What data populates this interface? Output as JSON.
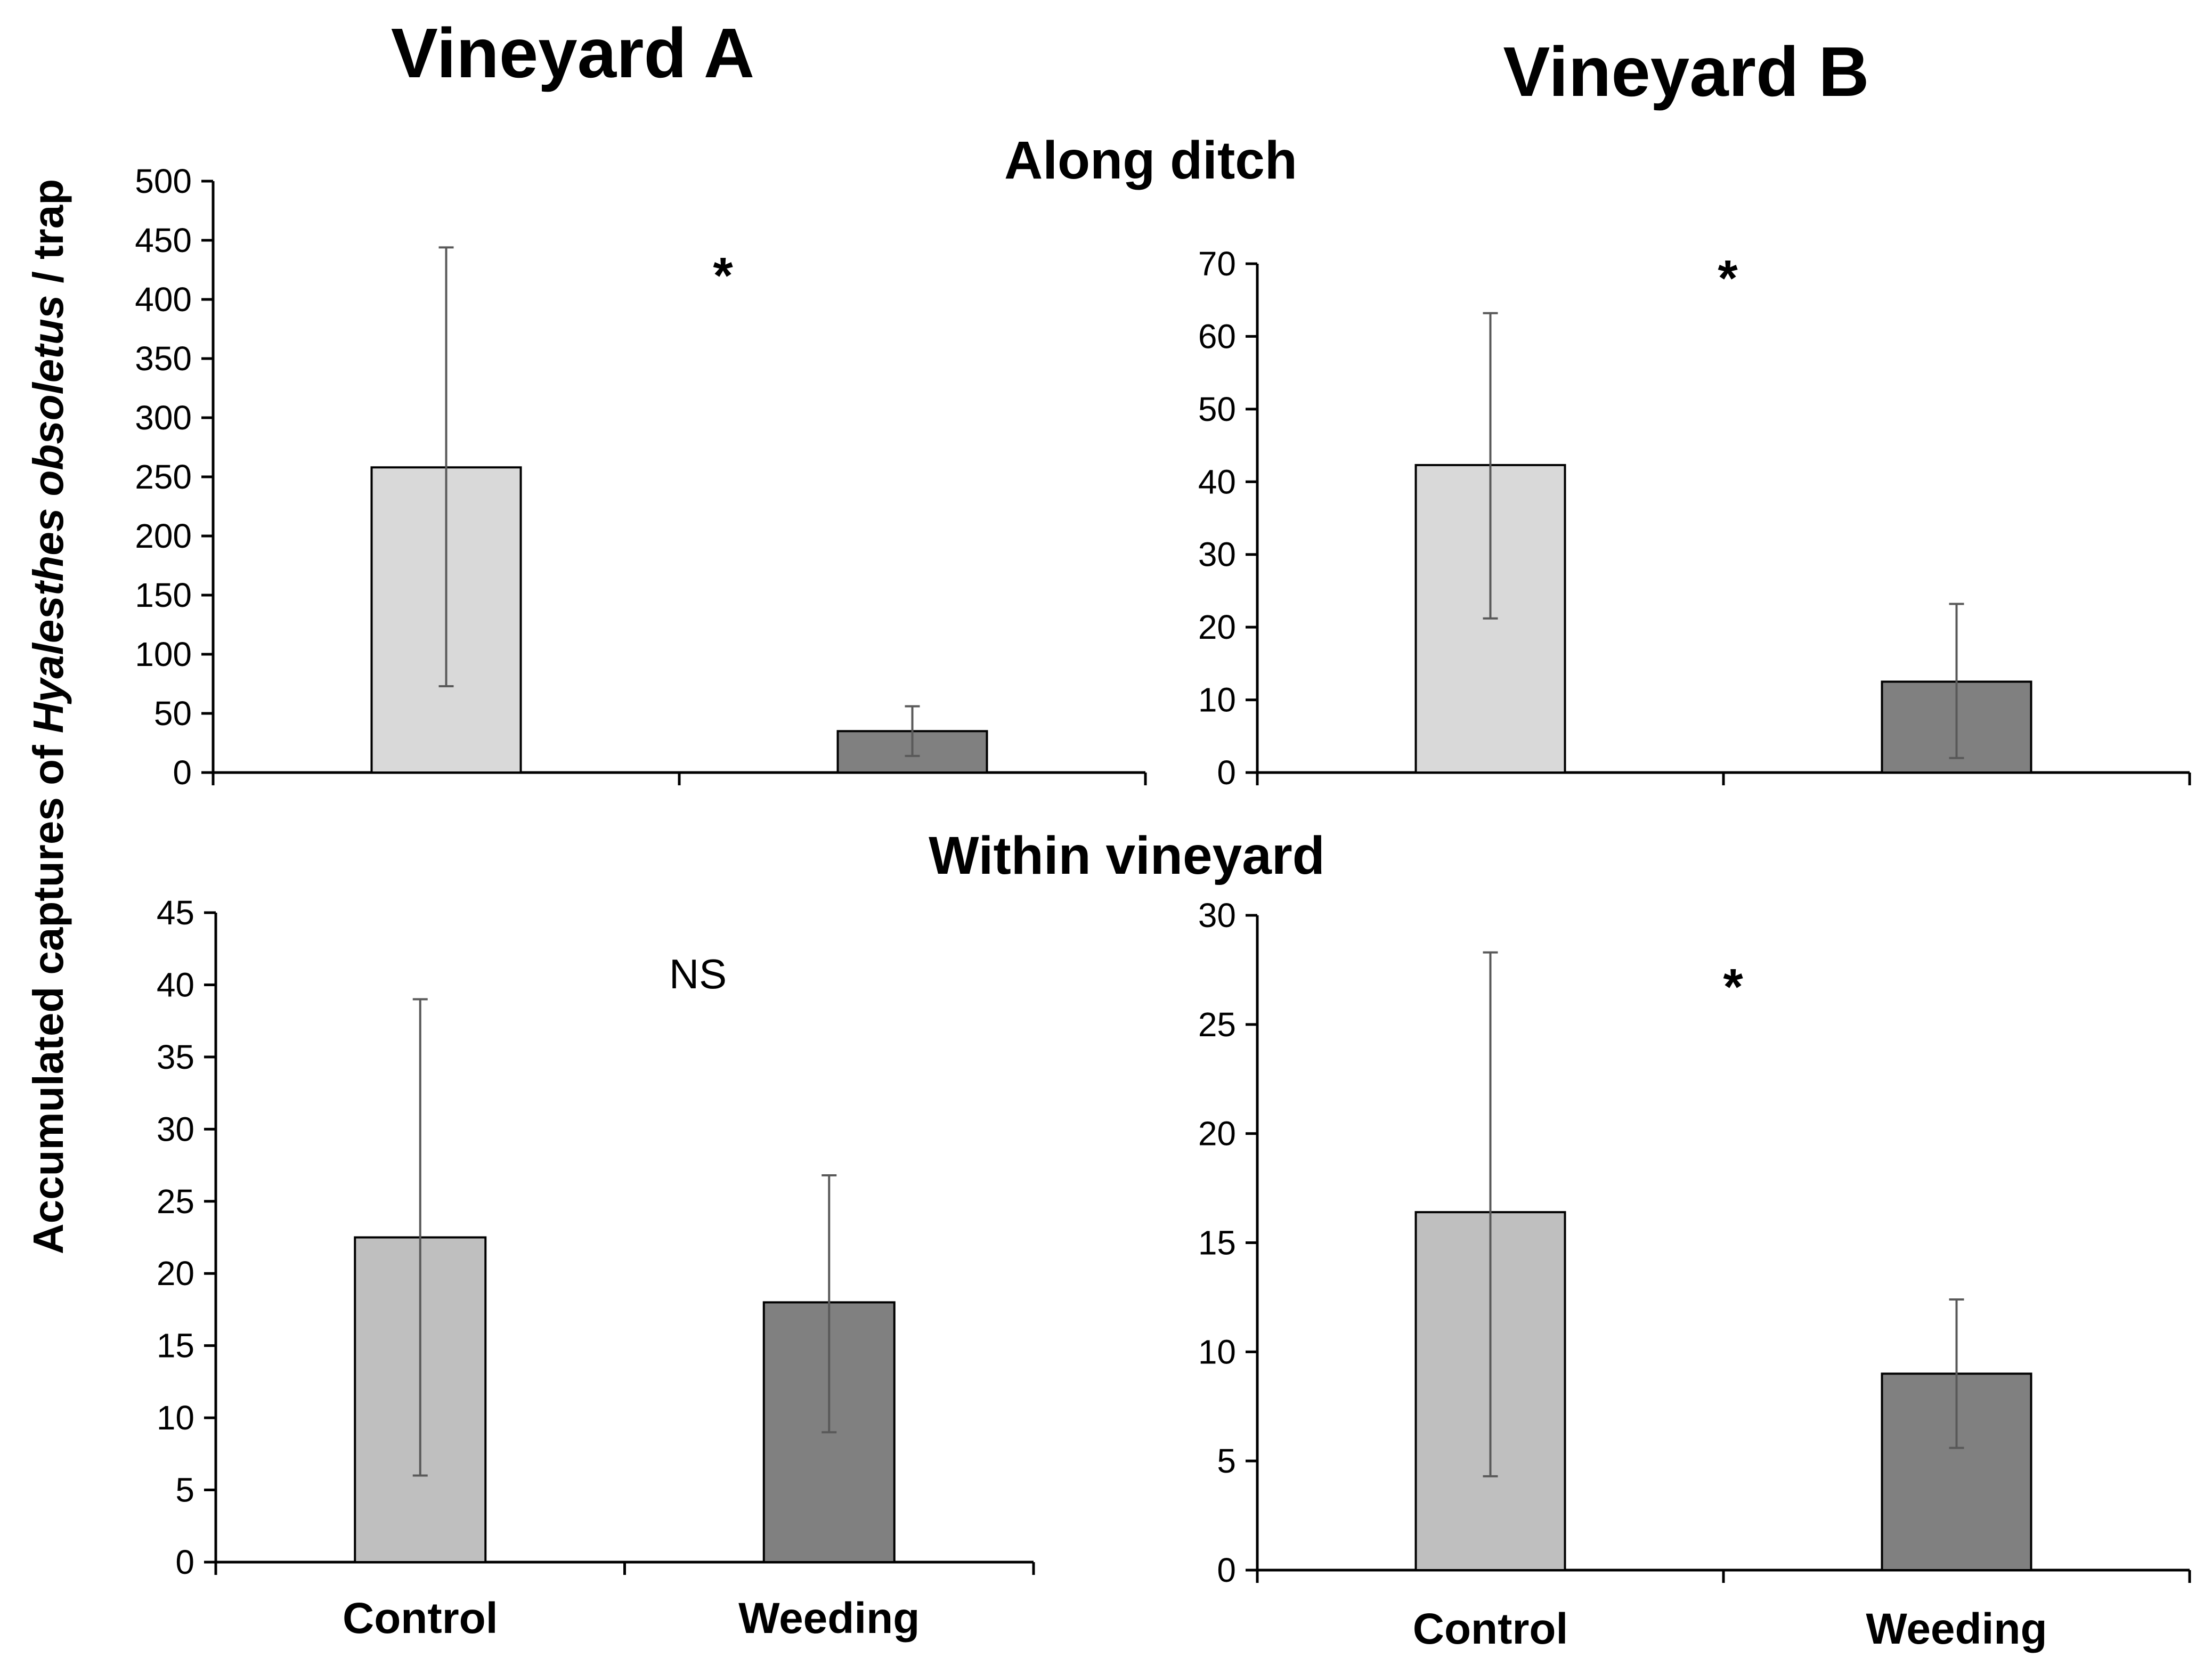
{
  "figure": {
    "vineyard_a_title": "Vineyard A",
    "vineyard_b_title": "Vineyard B",
    "row1_title": "Along ditch",
    "row2_title": "Within vineyard",
    "ylabel_prefix": "Accumulated captures of ",
    "ylabel_species": "Hyalesthes obsoletus",
    "ylabel_suffix": " / trap"
  },
  "chart_data": [
    {
      "type": "bar",
      "vineyard": "Vineyard A",
      "location": "Along ditch",
      "categories": [
        "Control",
        "Weeding"
      ],
      "show_category_labels": false,
      "values": [
        258,
        35
      ],
      "error_low": [
        73,
        14
      ],
      "error_high": [
        444,
        56
      ],
      "ylim": [
        0,
        500
      ],
      "yticks": [
        0,
        50,
        100,
        150,
        200,
        250,
        300,
        350,
        400,
        450,
        500
      ],
      "significance": "*",
      "bar_colors": [
        "#d9d9d9",
        "#808080"
      ]
    },
    {
      "type": "bar",
      "vineyard": "Vineyard B",
      "location": "Along ditch",
      "categories": [
        "Control",
        "Weeding"
      ],
      "show_category_labels": false,
      "values": [
        42.3,
        12.5
      ],
      "error_low": [
        21.2,
        2
      ],
      "error_high": [
        63.2,
        23.2
      ],
      "ylim": [
        0,
        70
      ],
      "yticks": [
        0,
        10,
        20,
        30,
        40,
        50,
        60,
        70
      ],
      "significance": "*",
      "bar_colors": [
        "#d9d9d9",
        "#808080"
      ]
    },
    {
      "type": "bar",
      "vineyard": "Vineyard A",
      "location": "Within vineyard",
      "categories": [
        "Control",
        "Weeding"
      ],
      "show_category_labels": true,
      "values": [
        22.5,
        18
      ],
      "error_low": [
        6,
        9
      ],
      "error_high": [
        39,
        26.8
      ],
      "ylim": [
        0,
        45
      ],
      "yticks": [
        0,
        5,
        10,
        15,
        20,
        25,
        30,
        35,
        40,
        45
      ],
      "significance": "NS",
      "bar_colors": [
        "#bfbfbf",
        "#808080"
      ]
    },
    {
      "type": "bar",
      "vineyard": "Vineyard B",
      "location": "Within vineyard",
      "categories": [
        "Control",
        "Weeding"
      ],
      "show_category_labels": true,
      "values": [
        16.4,
        9
      ],
      "error_low": [
        4.3,
        5.6
      ],
      "error_high": [
        28.3,
        12.4
      ],
      "ylim": [
        0,
        30
      ],
      "yticks": [
        0,
        5,
        10,
        15,
        20,
        25,
        30
      ],
      "significance": "*",
      "bar_colors": [
        "#bfbfbf",
        "#808080"
      ]
    }
  ]
}
